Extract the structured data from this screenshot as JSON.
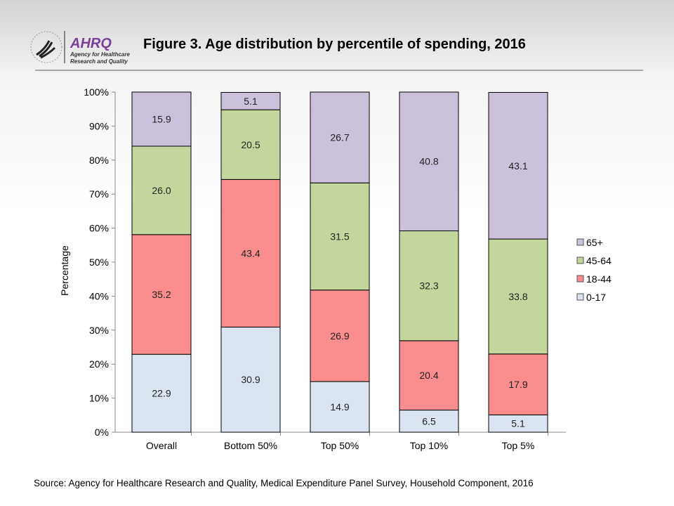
{
  "header": {
    "title": "Figure 3. Age distribution  by percentile of spending, 2016",
    "logo_text": "AHRQ",
    "logo_subtext": [
      "Agency for Healthcare",
      "Research and Quality"
    ]
  },
  "source": "Source: Agency for Healthcare Research and Quality, Medical Expenditure Panel Survey, Household Component, 2016",
  "chart_data": {
    "type": "bar",
    "stacked": true,
    "title": "",
    "xlabel": "",
    "ylabel": "Percentage",
    "ylim": [
      0,
      100
    ],
    "yticks": [
      "0%",
      "10%",
      "20%",
      "30%",
      "40%",
      "50%",
      "60%",
      "70%",
      "80%",
      "90%",
      "100%"
    ],
    "categories": [
      "Overall",
      "Bottom 50%",
      "Top 50%",
      "Top 10%",
      "Top 5%"
    ],
    "legend_position": "right",
    "grid": false,
    "series": [
      {
        "name": "0-17",
        "color": "#dbe5f1",
        "values": [
          22.9,
          30.9,
          14.9,
          6.5,
          5.1
        ]
      },
      {
        "name": "18-44",
        "color": "#f98c8c",
        "values": [
          35.2,
          43.4,
          26.9,
          20.4,
          17.9
        ]
      },
      {
        "name": "45-64",
        "color": "#c3d69b",
        "values": [
          26.0,
          20.5,
          31.5,
          32.3,
          33.8
        ]
      },
      {
        "name": "65+",
        "color": "#ccc1da",
        "values": [
          15.9,
          5.1,
          26.7,
          40.8,
          43.1
        ]
      }
    ],
    "legend_order": [
      "65+",
      "45-64",
      "18-44",
      "0-17"
    ]
  }
}
